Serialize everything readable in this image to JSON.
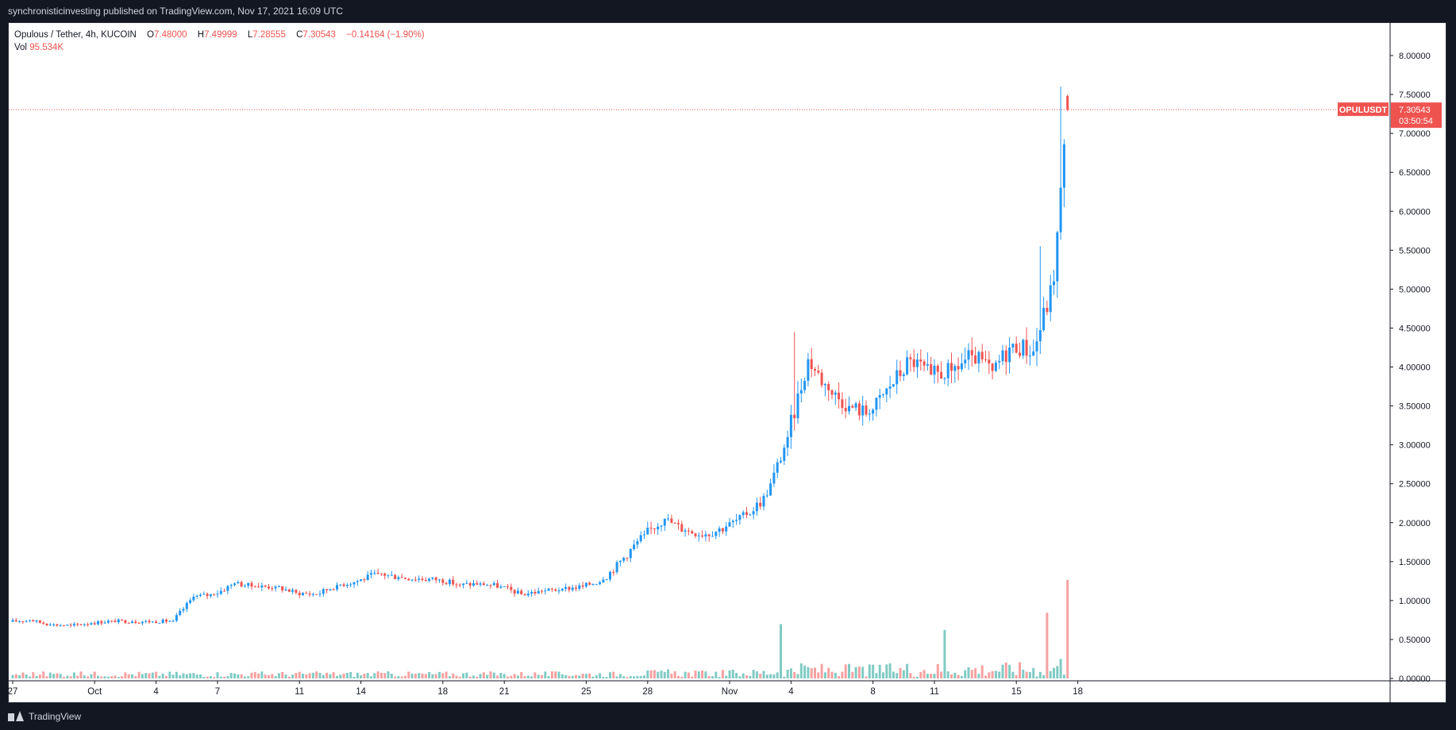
{
  "header": {
    "published_text": "synchronisticinvesting published on TradingView.com, Nov 17, 2021 16:09 UTC"
  },
  "legend": {
    "symbol_line": "Opulous / Tether, 4h, KUCOIN",
    "open_label": "O",
    "open": "7.48000",
    "high_label": "H",
    "high": "7.49999",
    "low_label": "L",
    "low": "7.28555",
    "close_label": "C",
    "close": "7.30543",
    "change": "−0.14164 (−1.90%)",
    "vol_label": "Vol",
    "vol": "95.534K"
  },
  "price_tag": {
    "symbol": "OPULUSDT",
    "price": "7.30543",
    "countdown": "03:50:54"
  },
  "footer": {
    "brand": "TradingView"
  },
  "colors": {
    "up": "#2196f3",
    "down": "#ef5350",
    "vol_up": "#80cbc4",
    "vol_down": "#f7a1a1",
    "background": "#ffffff",
    "frame": "#131722"
  },
  "chart_data": {
    "type": "candlestick",
    "timeframe": "4h",
    "symbol": "OPULUSDT",
    "exchange": "KUCOIN",
    "x_ticks": [
      "27",
      "Oct",
      "4",
      "7",
      "11",
      "14",
      "18",
      "21",
      "25",
      "28",
      "Nov",
      "4",
      "8",
      "11",
      "15",
      "18"
    ],
    "y_ticks": [
      "8.00000",
      "7.50000",
      "7.00000",
      "6.50000",
      "6.00000",
      "5.50000",
      "5.00000",
      "4.50000",
      "4.00000",
      "3.50000",
      "3.00000",
      "2.50000",
      "2.00000",
      "1.50000",
      "1.00000",
      "0.50000",
      "0.00000"
    ],
    "ylim": [
      0,
      8.5
    ],
    "current_price": 7.30543,
    "price_path_daily": [
      {
        "date": "Sep 27",
        "close": 0.75
      },
      {
        "date": "Sep 28",
        "close": 0.69
      },
      {
        "date": "Sep 29",
        "close": 0.68
      },
      {
        "date": "Sep 30",
        "close": 0.71
      },
      {
        "date": "Oct 1",
        "close": 0.74
      },
      {
        "date": "Oct 2",
        "close": 0.73
      },
      {
        "date": "Oct 3",
        "close": 0.73
      },
      {
        "date": "Oct 4",
        "close": 0.74
      },
      {
        "date": "Oct 5",
        "close": 1.05
      },
      {
        "date": "Oct 6",
        "close": 1.08
      },
      {
        "date": "Oct 7",
        "close": 1.22
      },
      {
        "date": "Oct 8",
        "close": 1.18
      },
      {
        "date": "Oct 9",
        "close": 1.18
      },
      {
        "date": "Oct 10",
        "close": 1.1
      },
      {
        "date": "Oct 11",
        "close": 1.08
      },
      {
        "date": "Oct 12",
        "close": 1.2
      },
      {
        "date": "Oct 13",
        "close": 1.25
      },
      {
        "date": "Oct 14",
        "close": 1.35
      },
      {
        "date": "Oct 15",
        "close": 1.3
      },
      {
        "date": "Oct 16",
        "close": 1.28
      },
      {
        "date": "Oct 17",
        "close": 1.27
      },
      {
        "date": "Oct 18",
        "close": 1.2
      },
      {
        "date": "Oct 19",
        "close": 1.22
      },
      {
        "date": "Oct 20",
        "close": 1.18
      },
      {
        "date": "Oct 21",
        "close": 1.08
      },
      {
        "date": "Oct 22",
        "close": 1.12
      },
      {
        "date": "Oct 23",
        "close": 1.15
      },
      {
        "date": "Oct 24",
        "close": 1.18
      },
      {
        "date": "Oct 25",
        "close": 1.27
      },
      {
        "date": "Oct 26",
        "close": 1.55
      },
      {
        "date": "Oct 27",
        "close": 1.85
      },
      {
        "date": "Oct 28",
        "close": 2.05
      },
      {
        "date": "Oct 29",
        "close": 1.9
      },
      {
        "date": "Oct 30",
        "close": 1.85
      },
      {
        "date": "Oct 31",
        "close": 1.95
      },
      {
        "date": "Nov 1",
        "close": 2.1
      },
      {
        "date": "Nov 2",
        "close": 2.35
      },
      {
        "date": "Nov 3",
        "close": 3.1
      },
      {
        "date": "Nov 4",
        "close": 4.1
      },
      {
        "date": "Nov 5",
        "close": 3.7
      },
      {
        "date": "Nov 6",
        "close": 3.5
      },
      {
        "date": "Nov 7",
        "close": 3.4
      },
      {
        "date": "Nov 8",
        "close": 3.75
      },
      {
        "date": "Nov 9",
        "close": 4.1
      },
      {
        "date": "Nov 10",
        "close": 3.9
      },
      {
        "date": "Nov 11",
        "close": 3.95
      },
      {
        "date": "Nov 12",
        "close": 4.15
      },
      {
        "date": "Nov 13",
        "close": 3.95
      },
      {
        "date": "Nov 14",
        "close": 4.3
      },
      {
        "date": "Nov 15",
        "close": 4.2
      },
      {
        "date": "Nov 16",
        "close": 5.1
      },
      {
        "date": "Nov 17",
        "close": 7.30543
      }
    ],
    "notable_highs": [
      {
        "date": "Nov 4",
        "high": 4.45
      },
      {
        "date": "Nov 16",
        "high": 5.55
      },
      {
        "date": "Nov 17",
        "high": 7.6
      }
    ],
    "volume_peaks": [
      {
        "date": "Nov 3",
        "volume": 1.14
      },
      {
        "date": "Nov 11",
        "volume": 1.02
      },
      {
        "date": "Nov 16",
        "volume": 1.38
      },
      {
        "date": "Nov 17",
        "volume": 2.07
      }
    ]
  }
}
